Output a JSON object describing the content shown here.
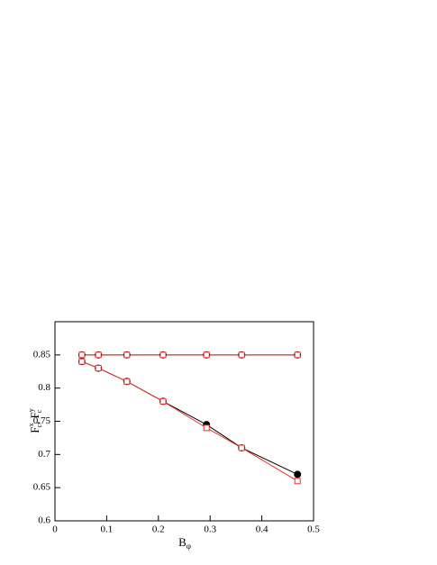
{
  "chart_data": {
    "type": "line",
    "x": [
      0.052,
      0.084,
      0.139,
      0.209,
      0.293,
      0.361,
      0.469
    ],
    "series": [
      {
        "color": "#000000",
        "marker": "circle",
        "values": [
          0.85,
          0.85,
          0.85,
          0.85,
          0.85,
          0.85,
          0.85
        ]
      },
      {
        "color": "#e8312f",
        "marker": "square",
        "values": [
          0.85,
          0.85,
          0.85,
          0.85,
          0.85,
          0.85,
          0.85
        ]
      },
      {
        "color": "#000000",
        "marker": "circle",
        "values": [
          0.84,
          0.83,
          0.81,
          0.78,
          0.745,
          0.71,
          0.67
        ]
      },
      {
        "color": "#e8312f",
        "marker": "square",
        "values": [
          0.84,
          0.83,
          0.81,
          0.78,
          0.74,
          0.71,
          0.66
        ]
      }
    ],
    "xlabel": [
      "B",
      "φ"
    ],
    "ylabel": [
      "F",
      "x",
      "c",
      ", F",
      "y",
      "c"
    ],
    "xlim": [
      0,
      0.5
    ],
    "xticks": [
      0,
      0.1,
      0.2,
      0.3,
      0.4,
      0.5
    ],
    "ylim": [
      0.6,
      0.9
    ],
    "yticks": [
      0.6,
      0.65,
      0.7,
      0.75,
      0.8,
      0.85
    ]
  }
}
